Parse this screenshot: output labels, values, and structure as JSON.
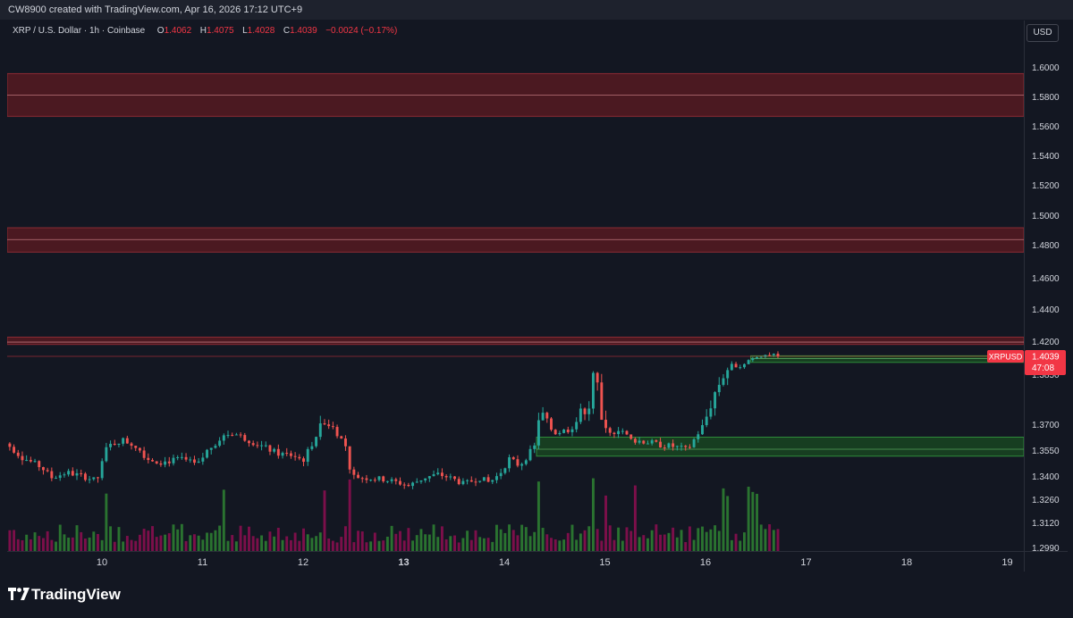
{
  "header": {
    "credit": "CW8900 created with TradingView.com, Apr 16, 2026 17:12 UTC+9"
  },
  "legend": {
    "symbol_desc": "XRP / U.S. Dollar · 1h · Coinbase",
    "open_label": "O",
    "open": "1.4062",
    "high_label": "H",
    "high": "1.4075",
    "low_label": "L",
    "low": "1.4028",
    "close_label": "C",
    "close": "1.4039",
    "change": "−0.0024 (−0.17%)"
  },
  "currency_button": "USD",
  "price_tag": {
    "symbol": "XRPUSD",
    "price": "1.4039",
    "countdown": "47:08"
  },
  "footer": {
    "brand": "TradingView"
  },
  "colors": {
    "background": "#131722",
    "up": "#26a69a",
    "down": "#ef5350",
    "volume_up": "#2e7d32",
    "volume_down": "#880e4f",
    "supply_zone": "#5a1a22",
    "demand_zone": "#1b5e20",
    "price_tag": "#f23645"
  },
  "chart_data": {
    "type": "candlestick",
    "symbol": "XRPUSD",
    "interval": "1h",
    "exchange": "Coinbase",
    "y_ticks": [
      "1.6000",
      "1.5800",
      "1.5600",
      "1.5400",
      "1.5200",
      "1.5000",
      "1.4800",
      "1.4600",
      "1.4400",
      "1.4200",
      "1.3850",
      "1.3700",
      "1.3550",
      "1.3400",
      "1.3260",
      "1.3120",
      "1.2990"
    ],
    "y_tick_values": [
      1.6,
      1.58,
      1.56,
      1.54,
      1.52,
      1.5,
      1.48,
      1.46,
      1.44,
      1.42,
      1.385,
      1.37,
      1.355,
      1.34,
      1.326,
      1.312,
      1.299
    ],
    "x_ticks": [
      "10",
      "11",
      "12",
      "13",
      "14",
      "15",
      "16",
      "17",
      "18",
      "19"
    ],
    "x_ticks_bold": [
      "13"
    ],
    "last_price": 1.4039,
    "zones": [
      {
        "kind": "supply",
        "low": 1.5665,
        "high": 1.5955,
        "mid": 1.581
      },
      {
        "kind": "supply",
        "low": 1.4755,
        "high": 1.4915,
        "mid": 1.4835
      },
      {
        "kind": "supply",
        "low": 1.4165,
        "high": 1.4225,
        "mid": 1.419
      },
      {
        "kind": "demand",
        "low": 1.3975,
        "high": 1.4045,
        "mid": 1.4015,
        "start_day": 16.45
      },
      {
        "kind": "demand",
        "low": 1.3515,
        "high": 1.3625,
        "mid": 1.3555,
        "start_day": 14.32
      }
    ],
    "price_waypoints": [
      [
        9.05,
        1.359
      ],
      [
        9.2,
        1.351
      ],
      [
        9.4,
        1.345
      ],
      [
        9.5,
        1.339
      ],
      [
        9.65,
        1.342
      ],
      [
        9.8,
        1.34
      ],
      [
        9.95,
        1.337
      ],
      [
        10.05,
        1.357
      ],
      [
        10.2,
        1.361
      ],
      [
        10.35,
        1.357
      ],
      [
        10.45,
        1.35
      ],
      [
        10.6,
        1.348
      ],
      [
        10.8,
        1.35
      ],
      [
        10.95,
        1.346
      ],
      [
        11.05,
        1.355
      ],
      [
        11.2,
        1.363
      ],
      [
        11.3,
        1.365
      ],
      [
        11.45,
        1.361
      ],
      [
        11.6,
        1.357
      ],
      [
        11.75,
        1.353
      ],
      [
        11.9,
        1.352
      ],
      [
        12.0,
        1.349
      ],
      [
        12.1,
        1.36
      ],
      [
        12.2,
        1.372
      ],
      [
        12.3,
        1.368
      ],
      [
        12.42,
        1.358
      ],
      [
        12.48,
        1.34
      ],
      [
        12.6,
        1.339
      ],
      [
        12.8,
        1.338
      ],
      [
        12.95,
        1.336
      ],
      [
        13.05,
        1.334
      ],
      [
        13.2,
        1.339
      ],
      [
        13.35,
        1.341
      ],
      [
        13.5,
        1.338
      ],
      [
        13.6,
        1.335
      ],
      [
        13.75,
        1.339
      ],
      [
        13.85,
        1.336
      ],
      [
        13.95,
        1.341
      ],
      [
        14.05,
        1.35
      ],
      [
        14.15,
        1.346
      ],
      [
        14.3,
        1.357
      ],
      [
        14.35,
        1.375
      ],
      [
        14.5,
        1.365
      ],
      [
        14.65,
        1.367
      ],
      [
        14.75,
        1.373
      ],
      [
        14.85,
        1.376
      ],
      [
        14.9,
        1.392
      ],
      [
        14.95,
        1.372
      ],
      [
        15.05,
        1.364
      ],
      [
        15.15,
        1.368
      ],
      [
        15.25,
        1.361
      ],
      [
        15.4,
        1.36
      ],
      [
        15.55,
        1.358
      ],
      [
        15.7,
        1.357
      ],
      [
        15.82,
        1.355
      ],
      [
        15.95,
        1.367
      ],
      [
        16.1,
        1.38
      ],
      [
        16.2,
        1.386
      ],
      [
        16.25,
        1.395
      ],
      [
        16.35,
        1.393
      ],
      [
        16.45,
        1.402
      ],
      [
        16.55,
        1.405
      ],
      [
        16.65,
        1.4062
      ],
      [
        16.72,
        1.4039
      ]
    ],
    "candle_count": 186,
    "volume": {
      "unit": "relative",
      "spikes_at_days": [
        9.05,
        10.05,
        11.2,
        12.2,
        12.48,
        14.35,
        14.9,
        15.0,
        15.3,
        16.2,
        16.45,
        16.5
      ]
    }
  }
}
